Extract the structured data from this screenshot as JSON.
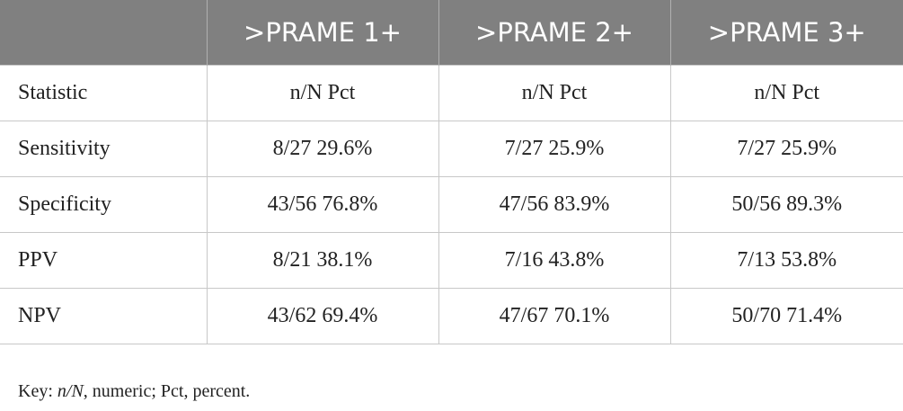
{
  "table": {
    "columns": [
      ">PRAME 1+",
      ">PRAME 2+",
      ">PRAME 3+"
    ],
    "rows": [
      [
        "Statistic",
        "n/N Pct",
        "n/N Pct",
        "n/N Pct"
      ],
      [
        "Sensitivity",
        "8/27 29.6%",
        "7/27 25.9%",
        "7/27 25.9%"
      ],
      [
        "Specificity",
        "43/56 76.8%",
        "47/56 83.9%",
        "50/56 89.3%"
      ],
      [
        "PPV",
        "8/21 38.1%",
        "7/16 43.8%",
        "7/13 53.8%"
      ],
      [
        "NPV",
        "43/62 69.4%",
        "47/67 70.1%",
        "50/70 71.4%"
      ]
    ]
  },
  "footnote": {
    "label": "Key:",
    "term": "n/N",
    "text": ", numeric; Pct, percent."
  }
}
